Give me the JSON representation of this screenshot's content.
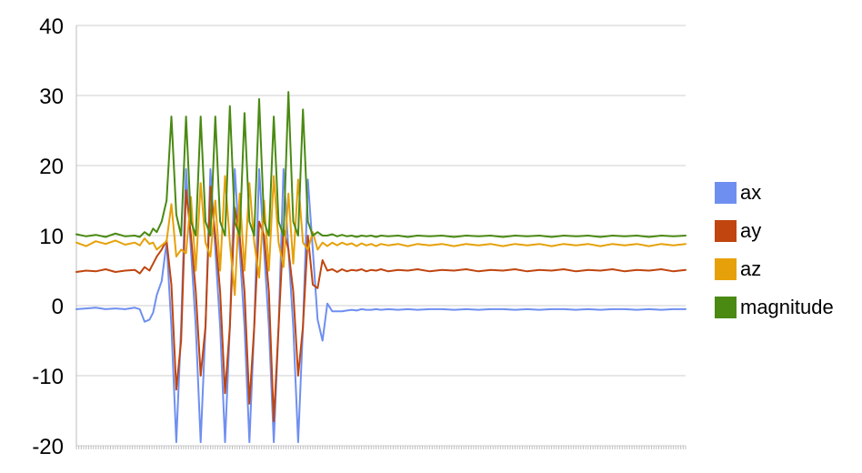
{
  "chart_data": {
    "type": "line",
    "title": "",
    "xlabel": "",
    "ylabel": "",
    "ylim": [
      -20,
      40
    ],
    "yticks": [
      "-20",
      "-10",
      "0",
      "10",
      "20",
      "30",
      "40"
    ],
    "grid": true,
    "legend_position": "right",
    "x": [
      0,
      8,
      16,
      24,
      32,
      40,
      48,
      52,
      56,
      60,
      63,
      66,
      70,
      74,
      78,
      82,
      86,
      90,
      94,
      98,
      102,
      106,
      110,
      114,
      118,
      122,
      126,
      130,
      134,
      138,
      142,
      146,
      150,
      154,
      158,
      162,
      166,
      170,
      174,
      178,
      182,
      186,
      190,
      194,
      198,
      202,
      206,
      210,
      214,
      218,
      222,
      226,
      230,
      234,
      238,
      242,
      246,
      250,
      256,
      264,
      272,
      280,
      290,
      300,
      310,
      320,
      330,
      340,
      350,
      360,
      370,
      380,
      390,
      400,
      410,
      420,
      430,
      440,
      450,
      460,
      470,
      480,
      490,
      500
    ],
    "series": [
      {
        "name": "ax",
        "color": "#6f8ff0",
        "values": [
          -0.5,
          -0.4,
          -0.3,
          -0.5,
          -0.4,
          -0.5,
          -0.3,
          -0.5,
          -2.3,
          -2.0,
          -1.0,
          1.5,
          3.5,
          9.0,
          -3.0,
          -19.5,
          -3.0,
          19.5,
          8.0,
          -3.0,
          -19.5,
          -3.0,
          19.5,
          8.0,
          -3.0,
          -19.5,
          -3.0,
          19.5,
          8.0,
          -3.0,
          -19.5,
          -3.0,
          19.5,
          8.0,
          -3.0,
          -19.5,
          -3.0,
          19.5,
          8.0,
          -3.0,
          -19.5,
          -3.0,
          18.0,
          8.0,
          -2.0,
          -5.0,
          0.3,
          -0.8,
          -0.8,
          -0.8,
          -0.7,
          -0.6,
          -0.7,
          -0.5,
          -0.6,
          -0.6,
          -0.5,
          -0.6,
          -0.5,
          -0.6,
          -0.5,
          -0.6,
          -0.5,
          -0.5,
          -0.6,
          -0.5,
          -0.6,
          -0.5,
          -0.5,
          -0.6,
          -0.5,
          -0.6,
          -0.5,
          -0.5,
          -0.6,
          -0.5,
          -0.6,
          -0.5,
          -0.5,
          -0.6,
          -0.5,
          -0.6,
          -0.5,
          -0.5
        ]
      },
      {
        "name": "ay",
        "color": "#c0450f",
        "values": [
          4.8,
          5.0,
          4.9,
          5.2,
          4.8,
          5.0,
          5.1,
          4.6,
          5.5,
          5.0,
          6.0,
          7.0,
          8.0,
          9.3,
          3.0,
          -12.0,
          -5.0,
          16.5,
          10.0,
          2.0,
          -10.0,
          -3.0,
          17.0,
          10.0,
          2.0,
          -12.5,
          -3.0,
          14.0,
          10.0,
          2.0,
          -14.0,
          -3.0,
          12.0,
          10.0,
          2.0,
          -16.5,
          -3.0,
          11.0,
          8.0,
          2.0,
          -10.0,
          -3.0,
          10.0,
          3.0,
          2.5,
          6.5,
          5.0,
          5.2,
          4.8,
          5.2,
          4.9,
          5.1,
          5.0,
          5.2,
          4.9,
          5.1,
          5.0,
          5.2,
          4.9,
          5.1,
          5.0,
          5.2,
          4.9,
          5.1,
          5.0,
          5.2,
          4.9,
          5.1,
          5.0,
          5.2,
          4.9,
          5.1,
          5.0,
          5.2,
          4.9,
          5.1,
          5.0,
          5.2,
          4.9,
          5.1,
          5.0,
          5.2,
          4.9,
          5.1
        ]
      },
      {
        "name": "az",
        "color": "#e6a10a",
        "values": [
          9.0,
          8.5,
          9.2,
          8.8,
          9.3,
          8.7,
          9.0,
          8.6,
          9.6,
          8.8,
          9.0,
          8.0,
          8.6,
          9.2,
          14.5,
          7.0,
          8.0,
          7.5,
          15.5,
          5.0,
          17.5,
          9.0,
          7.0,
          15.0,
          5.0,
          18.5,
          9.0,
          1.5,
          16.0,
          5.0,
          17.5,
          9.0,
          4.0,
          15.0,
          5.0,
          18.5,
          9.0,
          5.5,
          16.0,
          6.0,
          18.0,
          9.0,
          8.0,
          10.5,
          8.0,
          9.0,
          8.5,
          9.0,
          8.6,
          9.0,
          8.7,
          8.9,
          8.5,
          8.9,
          8.6,
          8.8,
          8.5,
          8.8,
          8.6,
          8.8,
          8.5,
          8.8,
          8.6,
          8.8,
          8.5,
          8.8,
          8.6,
          8.8,
          8.5,
          8.8,
          8.6,
          8.8,
          8.5,
          8.8,
          8.6,
          8.8,
          8.5,
          8.8,
          8.6,
          8.8,
          8.5,
          8.8,
          8.6,
          8.8
        ]
      },
      {
        "name": "magnitude",
        "color": "#4a8a13",
        "values": [
          10.2,
          9.9,
          10.1,
          9.8,
          10.3,
          9.9,
          10.0,
          9.8,
          10.5,
          10.0,
          11.0,
          10.5,
          12.0,
          15.0,
          27.0,
          13.0,
          10.0,
          27.0,
          12.0,
          10.0,
          27.0,
          12.0,
          10.0,
          27.0,
          12.0,
          10.0,
          28.5,
          12.0,
          10.0,
          27.5,
          12.0,
          10.0,
          29.5,
          12.0,
          10.0,
          27.0,
          12.0,
          10.0,
          30.5,
          12.0,
          10.0,
          28.0,
          12.0,
          10.0,
          10.5,
          10.0,
          10.0,
          10.2,
          9.9,
          10.1,
          9.9,
          10.0,
          9.8,
          10.0,
          9.9,
          10.0,
          9.8,
          10.0,
          9.9,
          10.0,
          9.8,
          10.0,
          9.9,
          10.0,
          9.8,
          10.0,
          9.9,
          10.0,
          9.8,
          10.0,
          9.9,
          10.0,
          9.8,
          10.0,
          9.9,
          10.0,
          9.8,
          10.0,
          9.9,
          10.0,
          9.8,
          10.0,
          9.9,
          10.0
        ]
      }
    ]
  }
}
